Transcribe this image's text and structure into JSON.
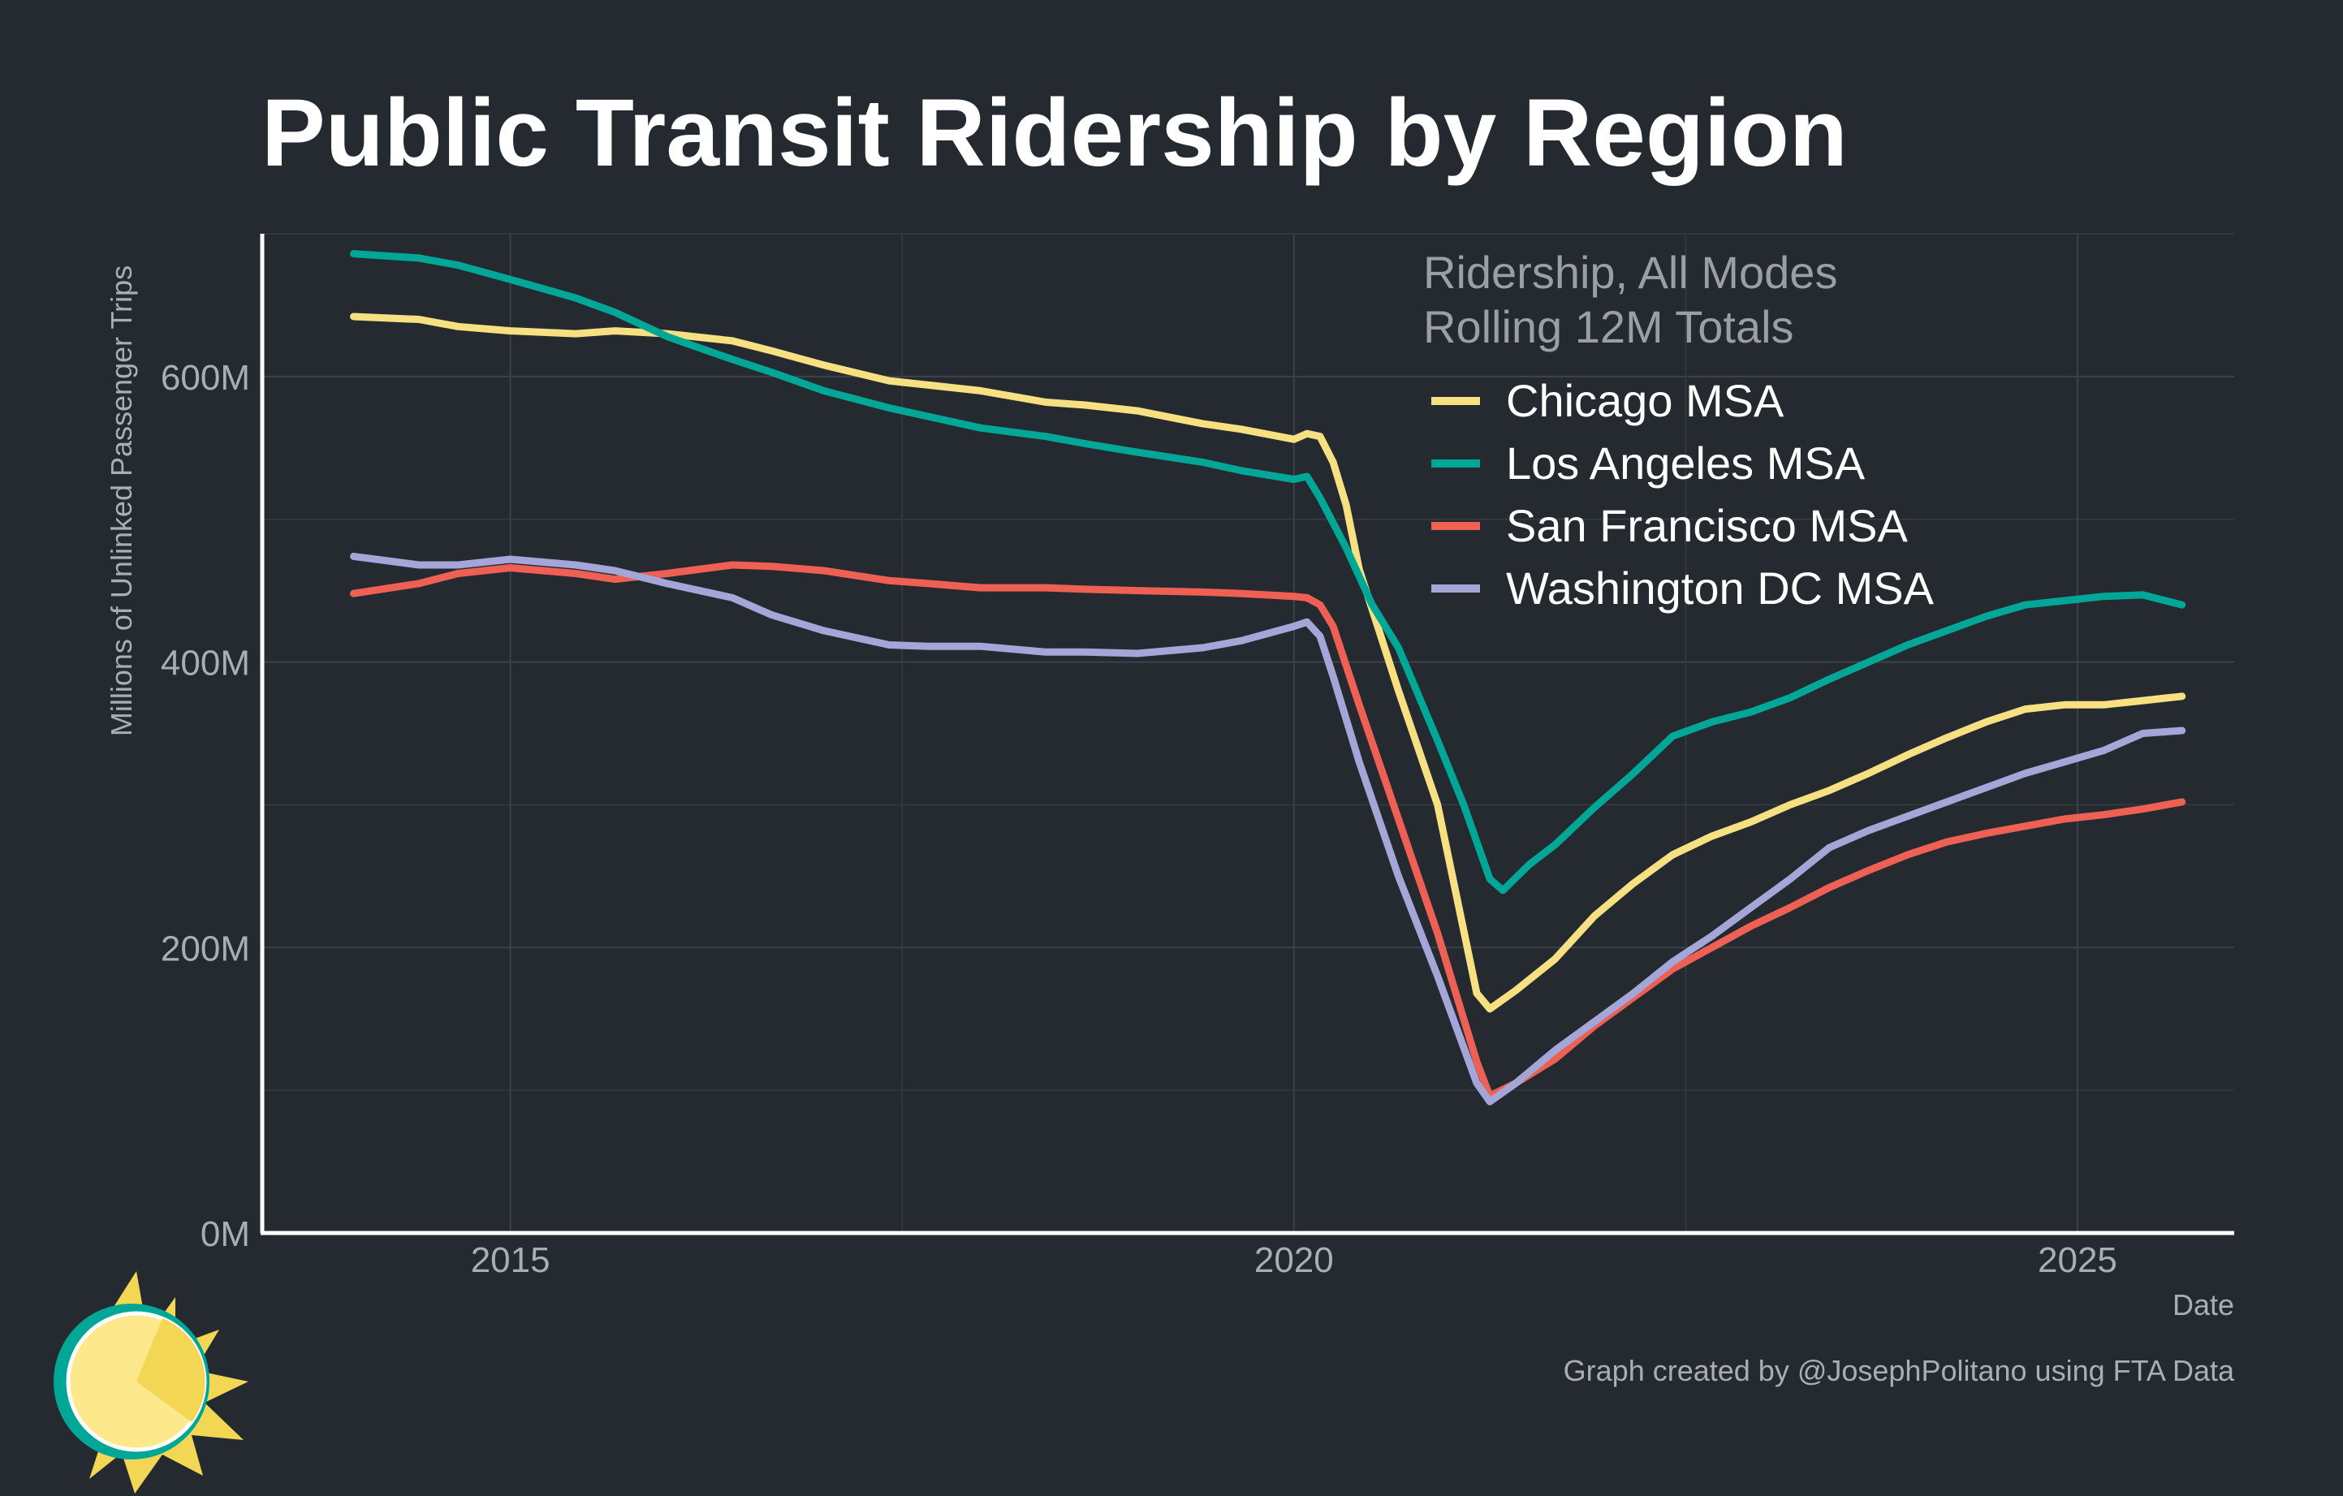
{
  "chart_data": {
    "type": "line",
    "title": "Public Transit Ridership by Region",
    "ylabel": "Millions of Unlinked Passenger Trips",
    "xlabel": "Date",
    "legend_title_lines": [
      "Ridership, All Modes",
      "Rolling 12M Totals"
    ],
    "caption": "Graph created by @JosephPolitano using FTA Data",
    "x_range": [
      "2013-06",
      "2026-01"
    ],
    "y_range": [
      0,
      700
    ],
    "x_ticks": [
      {
        "label": "2015",
        "date": "2015-01"
      },
      {
        "label": "2020",
        "date": "2020-01"
      },
      {
        "label": "2025",
        "date": "2025-01"
      }
    ],
    "y_ticks": [
      {
        "label": "0M",
        "value": 0
      },
      {
        "label": "200M",
        "value": 200
      },
      {
        "label": "400M",
        "value": 400
      },
      {
        "label": "600M",
        "value": 600
      }
    ],
    "grid": true,
    "legend_position": "top-right",
    "series": [
      {
        "name": "Chicago MSA",
        "color": "#f7e082",
        "points": [
          [
            "2014-01",
            642
          ],
          [
            "2014-06",
            640
          ],
          [
            "2014-09",
            635
          ],
          [
            "2015-01",
            632
          ],
          [
            "2015-06",
            630
          ],
          [
            "2015-09",
            632
          ],
          [
            "2016-01",
            630
          ],
          [
            "2016-06",
            625
          ],
          [
            "2016-09",
            618
          ],
          [
            "2017-01",
            608
          ],
          [
            "2017-06",
            597
          ],
          [
            "2017-09",
            594
          ],
          [
            "2018-01",
            590
          ],
          [
            "2018-06",
            582
          ],
          [
            "2018-09",
            580
          ],
          [
            "2019-01",
            576
          ],
          [
            "2019-06",
            567
          ],
          [
            "2019-09",
            563
          ],
          [
            "2020-01",
            556
          ],
          [
            "2020-02",
            560
          ],
          [
            "2020-03",
            558
          ],
          [
            "2020-04",
            540
          ],
          [
            "2020-05",
            510
          ],
          [
            "2020-06",
            465
          ],
          [
            "2020-09",
            380
          ],
          [
            "2020-12",
            300
          ],
          [
            "2021-03",
            168
          ],
          [
            "2021-04",
            157
          ],
          [
            "2021-06",
            170
          ],
          [
            "2021-09",
            192
          ],
          [
            "2021-12",
            222
          ],
          [
            "2022-03",
            245
          ],
          [
            "2022-06",
            265
          ],
          [
            "2022-09",
            278
          ],
          [
            "2022-12",
            288
          ],
          [
            "2023-03",
            300
          ],
          [
            "2023-06",
            310
          ],
          [
            "2023-09",
            322
          ],
          [
            "2023-12",
            335
          ],
          [
            "2024-03",
            347
          ],
          [
            "2024-06",
            358
          ],
          [
            "2024-09",
            367
          ],
          [
            "2024-12",
            370
          ],
          [
            "2025-03",
            370
          ],
          [
            "2025-06",
            373
          ],
          [
            "2025-09",
            376
          ]
        ]
      },
      {
        "name": "Los Angeles MSA",
        "color": "#00a797",
        "points": [
          [
            "2014-01",
            686
          ],
          [
            "2014-06",
            683
          ],
          [
            "2014-09",
            678
          ],
          [
            "2015-01",
            668
          ],
          [
            "2015-06",
            655
          ],
          [
            "2015-09",
            645
          ],
          [
            "2016-01",
            628
          ],
          [
            "2016-06",
            612
          ],
          [
            "2016-09",
            603
          ],
          [
            "2017-01",
            590
          ],
          [
            "2017-06",
            578
          ],
          [
            "2017-09",
            572
          ],
          [
            "2018-01",
            564
          ],
          [
            "2018-06",
            558
          ],
          [
            "2018-09",
            553
          ],
          [
            "2019-01",
            547
          ],
          [
            "2019-06",
            540
          ],
          [
            "2019-09",
            534
          ],
          [
            "2020-01",
            528
          ],
          [
            "2020-02",
            530
          ],
          [
            "2020-03",
            515
          ],
          [
            "2020-05",
            480
          ],
          [
            "2020-07",
            440
          ],
          [
            "2020-09",
            410
          ],
          [
            "2020-12",
            345
          ],
          [
            "2021-02",
            300
          ],
          [
            "2021-04",
            248
          ],
          [
            "2021-05",
            240
          ],
          [
            "2021-07",
            258
          ],
          [
            "2021-09",
            272
          ],
          [
            "2021-12",
            298
          ],
          [
            "2022-03",
            322
          ],
          [
            "2022-06",
            348
          ],
          [
            "2022-09",
            358
          ],
          [
            "2022-12",
            365
          ],
          [
            "2023-03",
            375
          ],
          [
            "2023-06",
            388
          ],
          [
            "2023-09",
            400
          ],
          [
            "2023-12",
            412
          ],
          [
            "2024-03",
            422
          ],
          [
            "2024-06",
            432
          ],
          [
            "2024-09",
            440
          ],
          [
            "2024-12",
            443
          ],
          [
            "2025-03",
            446
          ],
          [
            "2025-06",
            447
          ],
          [
            "2025-09",
            440
          ]
        ]
      },
      {
        "name": "San Francisco MSA",
        "color": "#ee6054",
        "points": [
          [
            "2014-01",
            448
          ],
          [
            "2014-06",
            455
          ],
          [
            "2014-09",
            462
          ],
          [
            "2015-01",
            466
          ],
          [
            "2015-06",
            462
          ],
          [
            "2015-09",
            458
          ],
          [
            "2016-01",
            462
          ],
          [
            "2016-06",
            468
          ],
          [
            "2016-09",
            467
          ],
          [
            "2017-01",
            464
          ],
          [
            "2017-06",
            457
          ],
          [
            "2017-09",
            455
          ],
          [
            "2018-01",
            452
          ],
          [
            "2018-06",
            452
          ],
          [
            "2018-09",
            451
          ],
          [
            "2019-01",
            450
          ],
          [
            "2019-06",
            449
          ],
          [
            "2019-09",
            448
          ],
          [
            "2020-01",
            446
          ],
          [
            "2020-02",
            445
          ],
          [
            "2020-03",
            440
          ],
          [
            "2020-04",
            425
          ],
          [
            "2020-06",
            370
          ],
          [
            "2020-09",
            290
          ],
          [
            "2020-12",
            210
          ],
          [
            "2021-03",
            120
          ],
          [
            "2021-04",
            96
          ],
          [
            "2021-06",
            105
          ],
          [
            "2021-09",
            122
          ],
          [
            "2021-12",
            145
          ],
          [
            "2022-03",
            165
          ],
          [
            "2022-06",
            185
          ],
          [
            "2022-09",
            200
          ],
          [
            "2022-12",
            215
          ],
          [
            "2023-03",
            228
          ],
          [
            "2023-06",
            242
          ],
          [
            "2023-09",
            254
          ],
          [
            "2023-12",
            265
          ],
          [
            "2024-03",
            274
          ],
          [
            "2024-06",
            280
          ],
          [
            "2024-09",
            285
          ],
          [
            "2024-12",
            290
          ],
          [
            "2025-03",
            293
          ],
          [
            "2025-06",
            297
          ],
          [
            "2025-09",
            302
          ]
        ]
      },
      {
        "name": "Washington DC MSA",
        "color": "#a3a6d6",
        "points": [
          [
            "2014-01",
            474
          ],
          [
            "2014-06",
            468
          ],
          [
            "2014-09",
            468
          ],
          [
            "2015-01",
            472
          ],
          [
            "2015-06",
            468
          ],
          [
            "2015-09",
            464
          ],
          [
            "2016-01",
            455
          ],
          [
            "2016-06",
            445
          ],
          [
            "2016-09",
            433
          ],
          [
            "2017-01",
            422
          ],
          [
            "2017-06",
            412
          ],
          [
            "2017-09",
            411
          ],
          [
            "2018-01",
            411
          ],
          [
            "2018-06",
            407
          ],
          [
            "2018-09",
            407
          ],
          [
            "2019-01",
            406
          ],
          [
            "2019-06",
            410
          ],
          [
            "2019-09",
            415
          ],
          [
            "2020-01",
            425
          ],
          [
            "2020-02",
            428
          ],
          [
            "2020-03",
            418
          ],
          [
            "2020-04",
            390
          ],
          [
            "2020-06",
            330
          ],
          [
            "2020-09",
            250
          ],
          [
            "2020-12",
            180
          ],
          [
            "2021-03",
            105
          ],
          [
            "2021-04",
            92
          ],
          [
            "2021-06",
            105
          ],
          [
            "2021-09",
            128
          ],
          [
            "2021-12",
            148
          ],
          [
            "2022-03",
            168
          ],
          [
            "2022-06",
            190
          ],
          [
            "2022-09",
            208
          ],
          [
            "2022-12",
            228
          ],
          [
            "2023-03",
            248
          ],
          [
            "2023-06",
            270
          ],
          [
            "2023-09",
            282
          ],
          [
            "2023-12",
            292
          ],
          [
            "2024-03",
            302
          ],
          [
            "2024-06",
            312
          ],
          [
            "2024-09",
            322
          ],
          [
            "2024-12",
            330
          ],
          [
            "2025-03",
            338
          ],
          [
            "2025-06",
            350
          ],
          [
            "2025-09",
            352
          ]
        ]
      }
    ]
  }
}
